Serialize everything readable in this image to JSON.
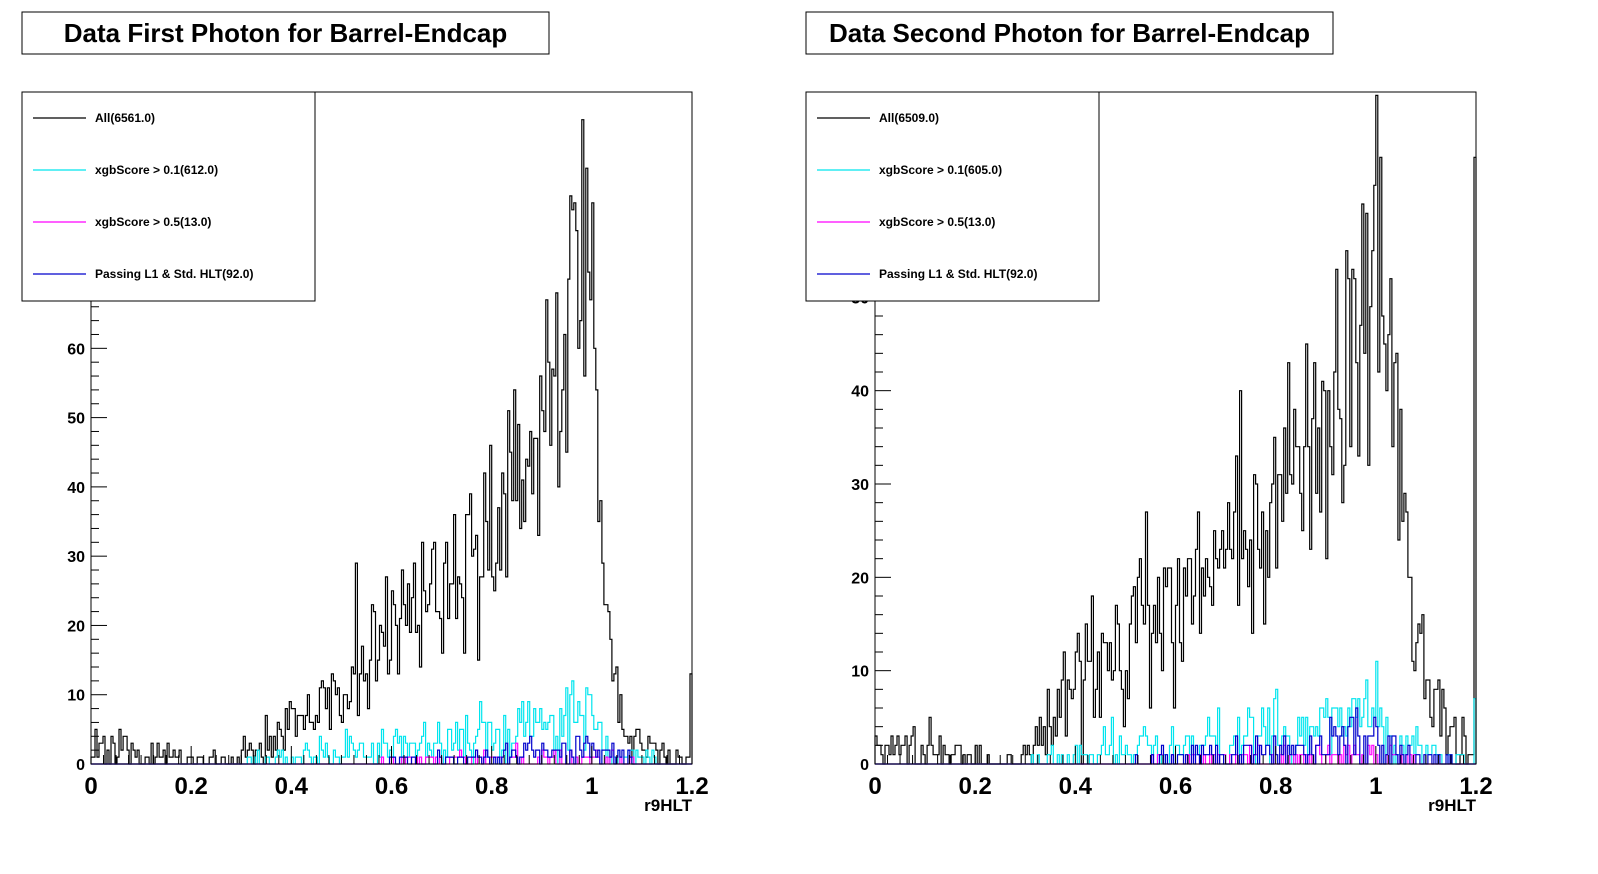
{
  "colors": {
    "all": "#000000",
    "xgb01": "#00e5ee",
    "xgb05": "#ff00ff",
    "passing": "#0000cc"
  },
  "chart_data": [
    {
      "type": "histogram",
      "title": "Data First Photon for Barrel-Endcap",
      "xlabel": "r9HLT",
      "xlim": [
        0,
        1.2
      ],
      "ylim": [
        0,
        97
      ],
      "x_ticks": [
        0,
        0.2,
        0.4,
        0.6,
        0.8,
        1,
        1.2
      ],
      "x_tick_labels": [
        "0",
        "0.2",
        "0.4",
        "0.6",
        "0.8",
        "1",
        "1.2"
      ],
      "y_ticks": [
        0,
        10,
        20,
        30,
        40,
        50,
        60
      ],
      "y_tick_labels": [
        "0",
        "10",
        "20",
        "30",
        "40",
        "50",
        "60"
      ],
      "legend_position": "top-left",
      "grid": false,
      "series": [
        {
          "name": "All(6561.0)",
          "color_key": "all",
          "points": [
            [
              0,
              2
            ],
            [
              0.28,
              0
            ],
            [
              0.3,
              1
            ],
            [
              0.34,
              3
            ],
            [
              0.38,
              4
            ],
            [
              0.42,
              6
            ],
            [
              0.46,
              9
            ],
            [
              0.5,
              11
            ],
            [
              0.54,
              14
            ],
            [
              0.58,
              18
            ],
            [
              0.62,
              20
            ],
            [
              0.66,
              23
            ],
            [
              0.7,
              25
            ],
            [
              0.74,
              28
            ],
            [
              0.78,
              31
            ],
            [
              0.82,
              35
            ],
            [
              0.86,
              40
            ],
            [
              0.9,
              46
            ],
            [
              0.94,
              54
            ],
            [
              0.96,
              62
            ],
            [
              0.98,
              70
            ],
            [
              1.0,
              66
            ],
            [
              1.01,
              52
            ],
            [
              1.02,
              33
            ],
            [
              1.03,
              20
            ],
            [
              1.04,
              14
            ],
            [
              1.05,
              10
            ],
            [
              1.06,
              7
            ],
            [
              1.08,
              4
            ],
            [
              1.1,
              3
            ],
            [
              1.12,
              2
            ],
            [
              1.15,
              1
            ],
            [
              1.18,
              1
            ],
            [
              1.2,
              0
            ]
          ],
          "peaks": [
            [
              0.98,
              93
            ],
            [
              0.99,
              86
            ],
            [
              1.0,
              81
            ],
            [
              0.96,
              80
            ],
            [
              0.93,
              68
            ],
            [
              0.85,
              38
            ],
            [
              0.75,
              36
            ],
            [
              0.53,
              29
            ],
            [
              0.62,
              28
            ]
          ]
        },
        {
          "name": "xgbScore > 0.1(612.0)",
          "color_key": "xgb01",
          "points": [
            [
              0.3,
              0
            ],
            [
              0.36,
              0.5
            ],
            [
              0.42,
              1
            ],
            [
              0.5,
              1.5
            ],
            [
              0.58,
              2
            ],
            [
              0.66,
              3
            ],
            [
              0.74,
              3.5
            ],
            [
              0.82,
              4
            ],
            [
              0.88,
              5
            ],
            [
              0.92,
              6
            ],
            [
              0.96,
              7
            ],
            [
              0.98,
              8
            ],
            [
              1.0,
              7
            ],
            [
              1.02,
              4
            ],
            [
              1.04,
              3
            ],
            [
              1.06,
              2
            ],
            [
              1.1,
              1
            ],
            [
              1.16,
              0
            ],
            [
              1.2,
              0
            ]
          ],
          "peaks": [
            [
              0.96,
              12
            ],
            [
              0.99,
              11
            ],
            [
              0.86,
              9
            ]
          ]
        },
        {
          "name": "xgbScore > 0.5(13.0)",
          "color_key": "xgb05",
          "points": [
            [
              0.5,
              0
            ],
            [
              0.7,
              0.4
            ],
            [
              0.9,
              0.6
            ],
            [
              0.98,
              0.8
            ],
            [
              1.04,
              0.3
            ],
            [
              1.1,
              0
            ],
            [
              1.2,
              0
            ]
          ],
          "peaks": [
            [
              0.7,
              1
            ],
            [
              0.98,
              1
            ]
          ]
        },
        {
          "name": "Passing L1 & Std. HLT(92.0)",
          "color_key": "passing",
          "points": [
            [
              0.55,
              0
            ],
            [
              0.7,
              0.5
            ],
            [
              0.82,
              1
            ],
            [
              0.9,
              1.5
            ],
            [
              0.96,
              2.5
            ],
            [
              1.0,
              2
            ],
            [
              1.04,
              1
            ],
            [
              1.1,
              0
            ],
            [
              1.2,
              0
            ]
          ],
          "peaks": [
            [
              0.99,
              4
            ],
            [
              0.9,
              3
            ]
          ]
        }
      ],
      "overflow_value": 13
    },
    {
      "type": "histogram",
      "title": "Data Second Photon for Barrel-Endcap",
      "xlabel": "r9HLT",
      "xlim": [
        0,
        1.2
      ],
      "ylim": [
        0,
        72
      ],
      "x_ticks": [
        0,
        0.2,
        0.4,
        0.6,
        0.8,
        1,
        1.2
      ],
      "x_tick_labels": [
        "0",
        "0.2",
        "0.4",
        "0.6",
        "0.8",
        "1",
        "1.2"
      ],
      "y_ticks": [
        0,
        10,
        20,
        30,
        40,
        50
      ],
      "y_tick_labels": [
        "0",
        "10",
        "20",
        "30",
        "40",
        "50"
      ],
      "legend_position": "top-left",
      "grid": false,
      "series": [
        {
          "name": "All(6509.0)",
          "color_key": "all",
          "points": [
            [
              0,
              2
            ],
            [
              0.26,
              0
            ],
            [
              0.28,
              1
            ],
            [
              0.32,
              2
            ],
            [
              0.36,
              5
            ],
            [
              0.4,
              8
            ],
            [
              0.44,
              10
            ],
            [
              0.48,
              12
            ],
            [
              0.52,
              14
            ],
            [
              0.56,
              16
            ],
            [
              0.6,
              17
            ],
            [
              0.64,
              19
            ],
            [
              0.68,
              20
            ],
            [
              0.72,
              22
            ],
            [
              0.76,
              24
            ],
            [
              0.8,
              26
            ],
            [
              0.84,
              29
            ],
            [
              0.88,
              33
            ],
            [
              0.92,
              38
            ],
            [
              0.96,
              44
            ],
            [
              0.98,
              50
            ],
            [
              1.0,
              52
            ],
            [
              1.02,
              44
            ],
            [
              1.04,
              36
            ],
            [
              1.06,
              26
            ],
            [
              1.07,
              18
            ],
            [
              1.08,
              14
            ],
            [
              1.1,
              10
            ],
            [
              1.12,
              7
            ],
            [
              1.14,
              5
            ],
            [
              1.16,
              3
            ],
            [
              1.18,
              2
            ],
            [
              1.2,
              0
            ]
          ],
          "peaks": [
            [
              1.0,
              72
            ],
            [
              1.01,
              65
            ],
            [
              0.98,
              59
            ],
            [
              0.92,
              53
            ],
            [
              0.86,
              45
            ],
            [
              0.73,
              40
            ],
            [
              0.82,
              36
            ],
            [
              0.54,
              27
            ]
          ]
        },
        {
          "name": "xgbScore > 0.1(605.0)",
          "color_key": "xgb01",
          "points": [
            [
              0.3,
              0
            ],
            [
              0.36,
              0.5
            ],
            [
              0.44,
              1
            ],
            [
              0.52,
              1.5
            ],
            [
              0.6,
              2
            ],
            [
              0.68,
              2.5
            ],
            [
              0.76,
              3
            ],
            [
              0.84,
              3.5
            ],
            [
              0.9,
              4
            ],
            [
              0.96,
              5
            ],
            [
              1.0,
              6
            ],
            [
              1.02,
              5
            ],
            [
              1.04,
              3
            ],
            [
              1.06,
              2
            ],
            [
              1.1,
              1
            ],
            [
              1.14,
              0.5
            ],
            [
              1.2,
              0
            ]
          ],
          "peaks": [
            [
              1.0,
              11
            ],
            [
              0.98,
              9
            ],
            [
              0.8,
              8
            ],
            [
              1.2,
              7
            ]
          ]
        },
        {
          "name": "xgbScore > 0.5(13.0)",
          "color_key": "xgb05",
          "points": [
            [
              0.5,
              0
            ],
            [
              0.7,
              0.4
            ],
            [
              0.9,
              0.6
            ],
            [
              1.0,
              0.8
            ],
            [
              1.06,
              0.3
            ],
            [
              1.12,
              0
            ],
            [
              1.2,
              0
            ]
          ],
          "peaks": [
            [
              0.92,
              1
            ],
            [
              1.0,
              1
            ]
          ]
        },
        {
          "name": "Passing L1 & Std. HLT(92.0)",
          "color_key": "passing",
          "points": [
            [
              0.5,
              0
            ],
            [
              0.65,
              0.5
            ],
            [
              0.8,
              1
            ],
            [
              0.9,
              1.5
            ],
            [
              0.96,
              2
            ],
            [
              1.0,
              2.5
            ],
            [
              1.04,
              1
            ],
            [
              1.1,
              0.3
            ],
            [
              1.2,
              0
            ]
          ],
          "peaks": [
            [
              1.0,
              4
            ],
            [
              0.92,
              3
            ]
          ]
        }
      ],
      "overflow_value": 65
    }
  ]
}
